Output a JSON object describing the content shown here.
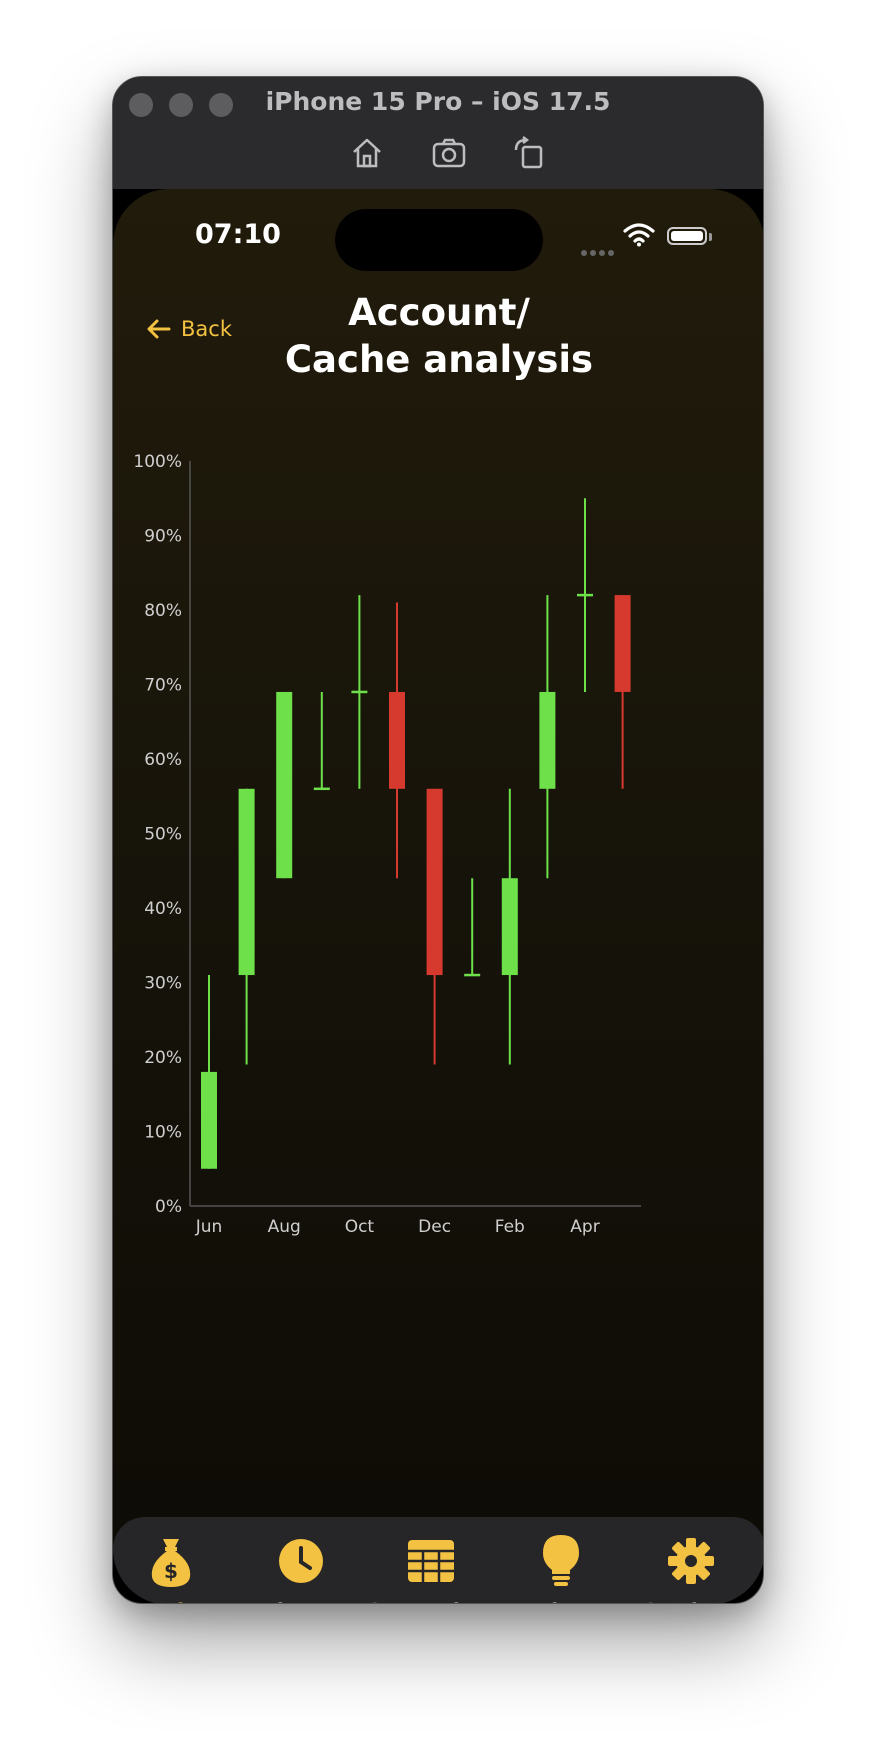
{
  "window": {
    "title": "iPhone 15 Pro – iOS 17.5",
    "toolbar_icons": [
      "home-icon",
      "screenshot-icon",
      "rotate-icon"
    ]
  },
  "status_bar": {
    "time": "07:10"
  },
  "header": {
    "back_label": "Back",
    "title_line1": "Account/",
    "title_line2": "Cache analysis"
  },
  "colors": {
    "accent": "#f4c242",
    "up": "#6ee04a",
    "down": "#d63a2f",
    "axis": "#555555",
    "tick_text": "#cfcfcf"
  },
  "chart_data": {
    "type": "candlestick",
    "ylim": [
      0,
      100
    ],
    "y_ticks": [
      "0%",
      "10%",
      "20%",
      "30%",
      "40%",
      "50%",
      "60%",
      "70%",
      "80%",
      "90%",
      "100%"
    ],
    "x_tick_labels": [
      "Jun",
      "Aug",
      "Oct",
      "Dec",
      "Feb",
      "Apr"
    ],
    "x_tick_indices": [
      0,
      2,
      4,
      6,
      8,
      10
    ],
    "candles": [
      {
        "open": 5,
        "close": 18,
        "low": 5,
        "high": 31
      },
      {
        "open": 31,
        "close": 56,
        "low": 19,
        "high": 56
      },
      {
        "open": 44,
        "close": 69,
        "low": 44,
        "high": 69
      },
      {
        "open": 56,
        "close": 56,
        "low": 56,
        "high": 69
      },
      {
        "open": 69,
        "close": 69,
        "low": 56,
        "high": 82
      },
      {
        "open": 69,
        "close": 56,
        "low": 44,
        "high": 81
      },
      {
        "open": 56,
        "close": 31,
        "low": 19,
        "high": 56
      },
      {
        "open": 31,
        "close": 31,
        "low": 31,
        "high": 44
      },
      {
        "open": 31,
        "close": 44,
        "low": 19,
        "high": 56
      },
      {
        "open": 56,
        "close": 69,
        "low": 44,
        "high": 82
      },
      {
        "open": 82,
        "close": 82,
        "low": 69,
        "high": 95
      },
      {
        "open": 82,
        "close": 69,
        "low": 56,
        "high": 82
      }
    ]
  },
  "tabs": [
    {
      "label": "Main",
      "icon": "money-bag-icon",
      "active": true
    },
    {
      "label": "History",
      "icon": "clock-icon",
      "active": false
    },
    {
      "label": "Comparison",
      "icon": "table-icon",
      "active": false
    },
    {
      "label": "Tips",
      "icon": "lightbulb-icon",
      "active": false
    },
    {
      "label": "Settings",
      "icon": "gear-icon",
      "active": false
    }
  ]
}
